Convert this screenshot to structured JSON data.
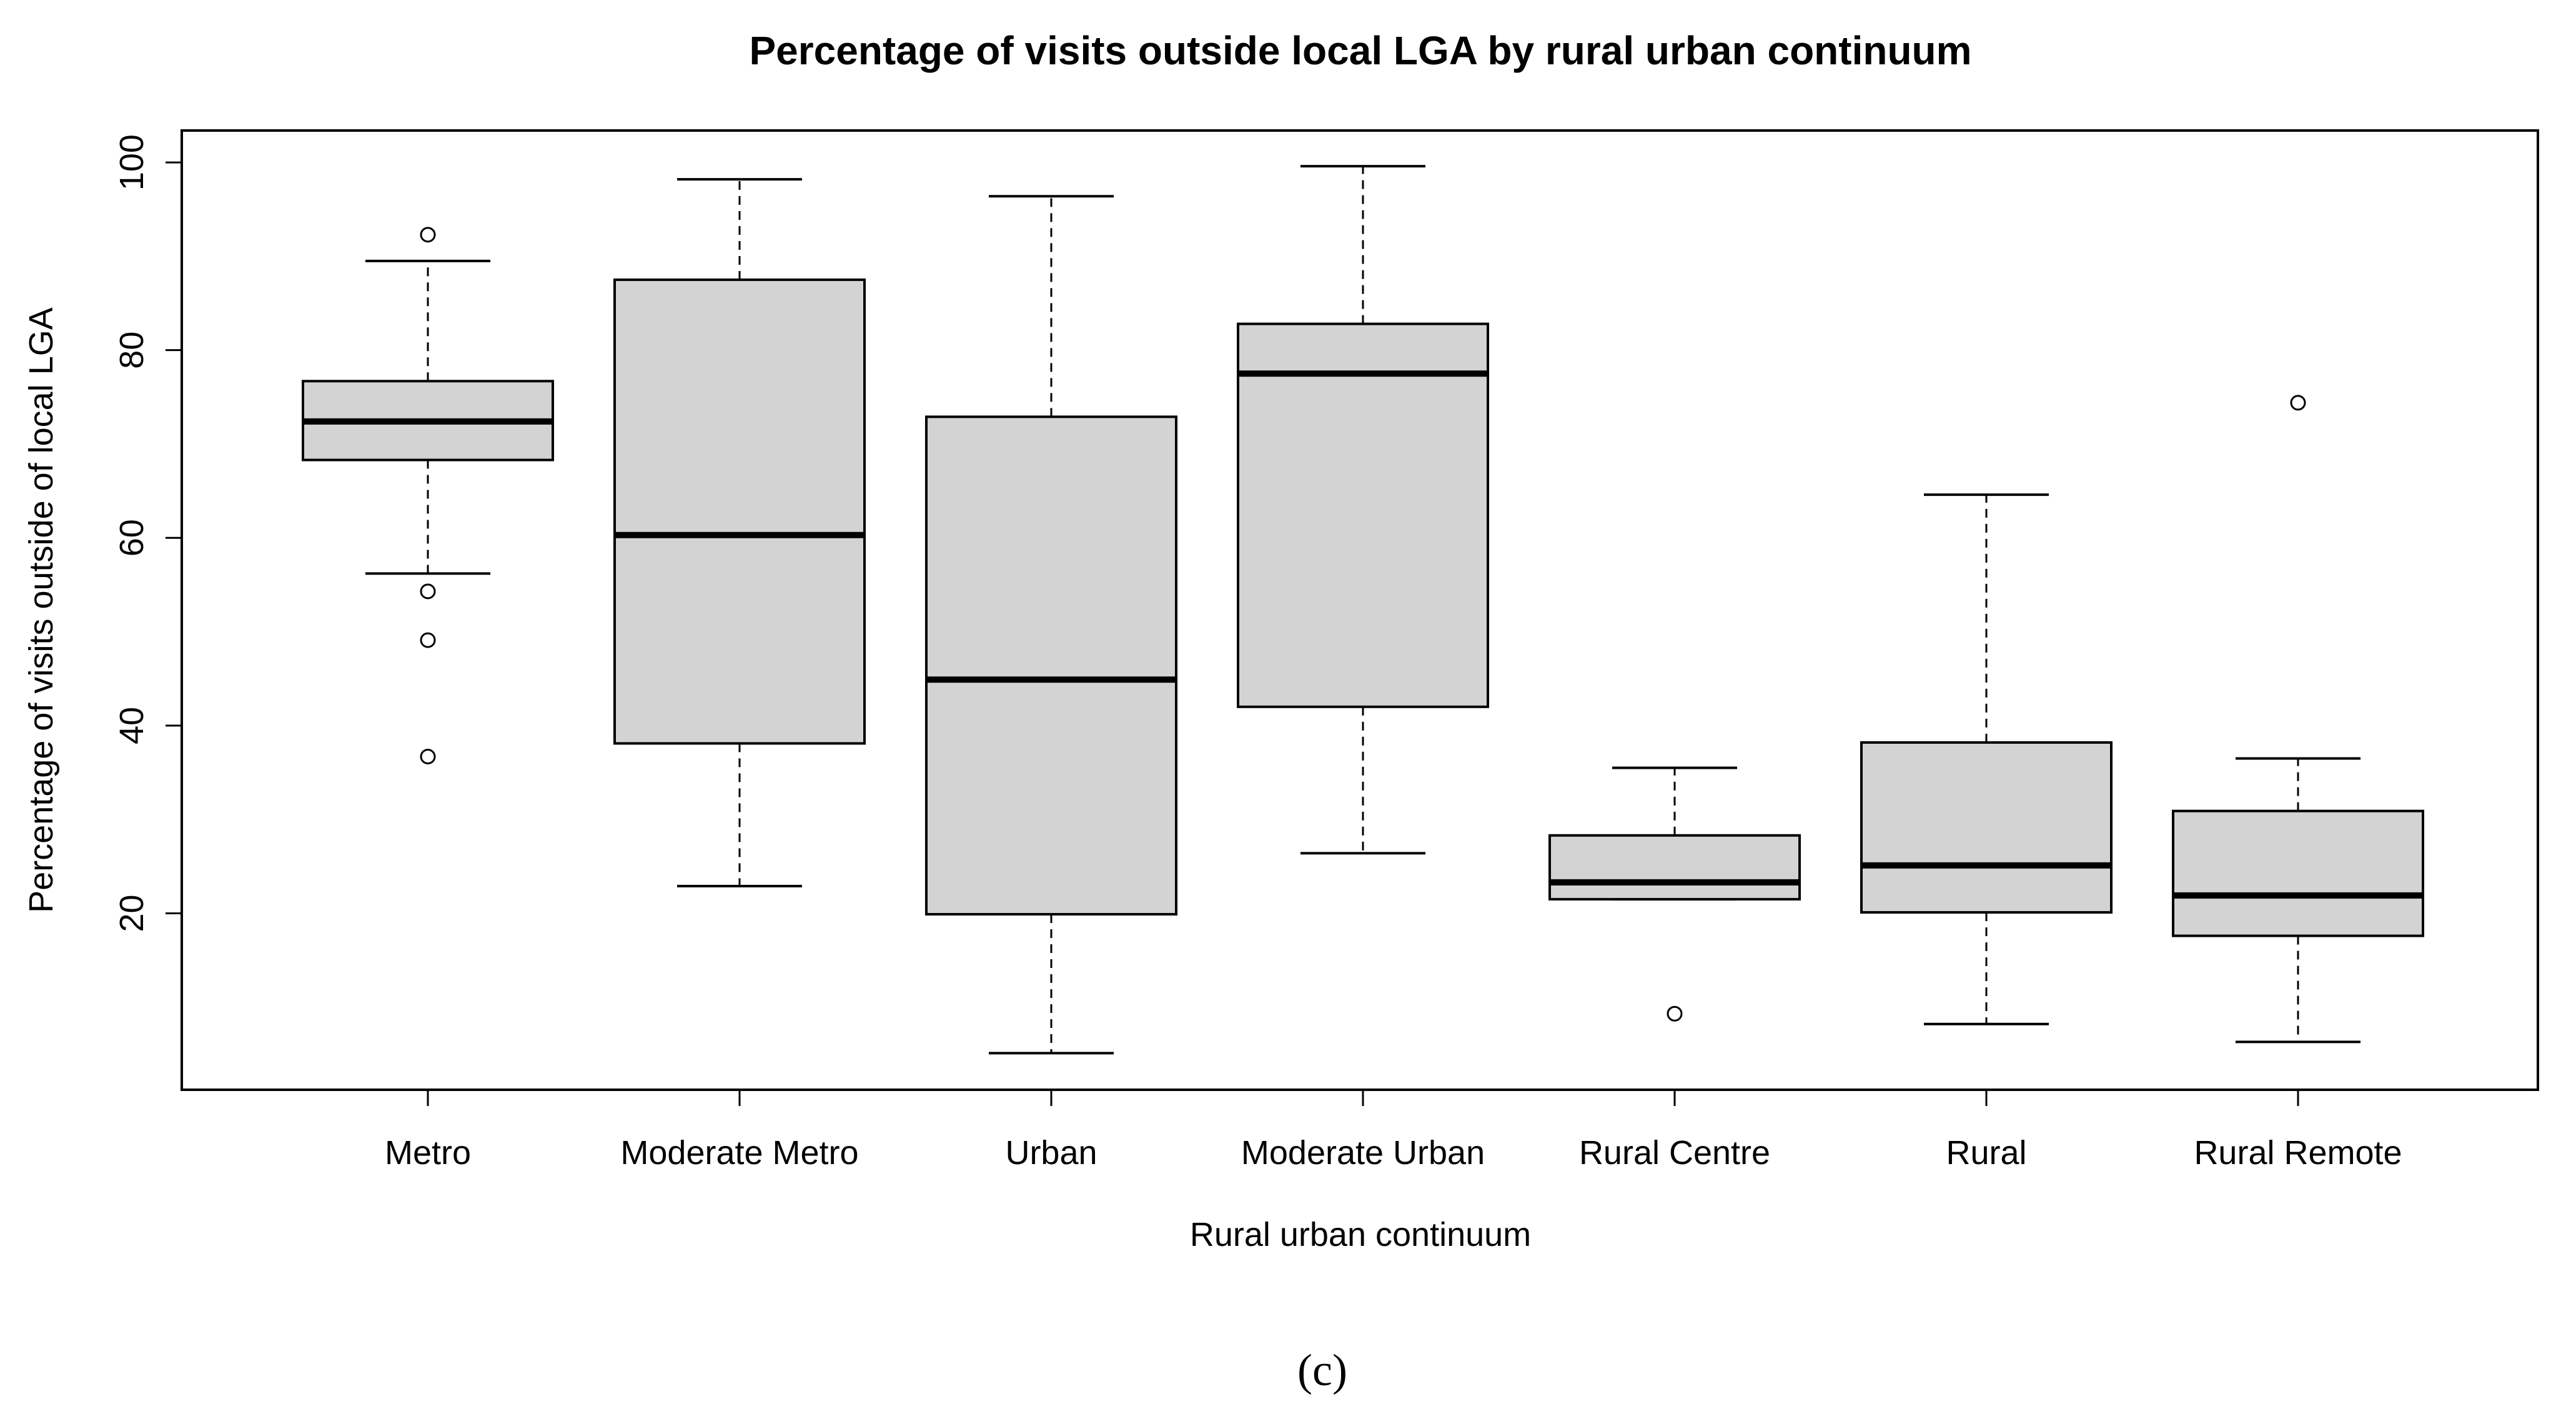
{
  "chart_data": {
    "type": "boxplot",
    "title": "Percentage of visits outside local LGA by rural urban continuum",
    "xlabel": "Rural urban continuum",
    "ylabel": "Percentage of visits outside of local LGA",
    "ylim": [
      1.2,
      103.4
    ],
    "yticks": [
      20,
      40,
      60,
      80,
      100
    ],
    "ytick_labels": [
      "20",
      "40",
      "60",
      "80",
      "100"
    ],
    "grid": false,
    "box_fill": "#d3d3d3",
    "categories": [
      "Metro",
      "Moderate Metro",
      "Urban",
      "Moderate Urban",
      "Rural Centre",
      "Rural",
      "Rural Remote"
    ],
    "boxes": [
      {
        "category": "Metro",
        "whisker_low": 56.2,
        "q1": 68.3,
        "median": 72.4,
        "q3": 76.7,
        "whisker_high": 89.5,
        "outliers": [
          92.3,
          54.3,
          49.1,
          36.7
        ]
      },
      {
        "category": "Moderate Metro",
        "whisker_low": 22.9,
        "q1": 38.1,
        "median": 60.3,
        "q3": 87.5,
        "whisker_high": 98.2,
        "outliers": []
      },
      {
        "category": "Urban",
        "whisker_low": 5.1,
        "q1": 19.9,
        "median": 44.9,
        "q3": 72.9,
        "whisker_high": 96.4,
        "outliers": []
      },
      {
        "category": "Moderate Urban",
        "whisker_low": 26.4,
        "q1": 42.0,
        "median": 77.5,
        "q3": 82.8,
        "whisker_high": 99.6,
        "outliers": []
      },
      {
        "category": "Rural Centre",
        "whisker_low": 21.5,
        "q1": 21.5,
        "median": 23.3,
        "q3": 28.3,
        "whisker_high": 35.5,
        "outliers": [
          9.3
        ]
      },
      {
        "category": "Rural",
        "whisker_low": 8.2,
        "q1": 20.1,
        "median": 25.1,
        "q3": 38.2,
        "whisker_high": 64.6,
        "outliers": []
      },
      {
        "category": "Rural Remote",
        "whisker_low": 6.3,
        "q1": 17.6,
        "median": 21.9,
        "q3": 30.9,
        "whisker_high": 36.5,
        "outliers": [
          74.4
        ]
      }
    ]
  },
  "caption": "(c)"
}
